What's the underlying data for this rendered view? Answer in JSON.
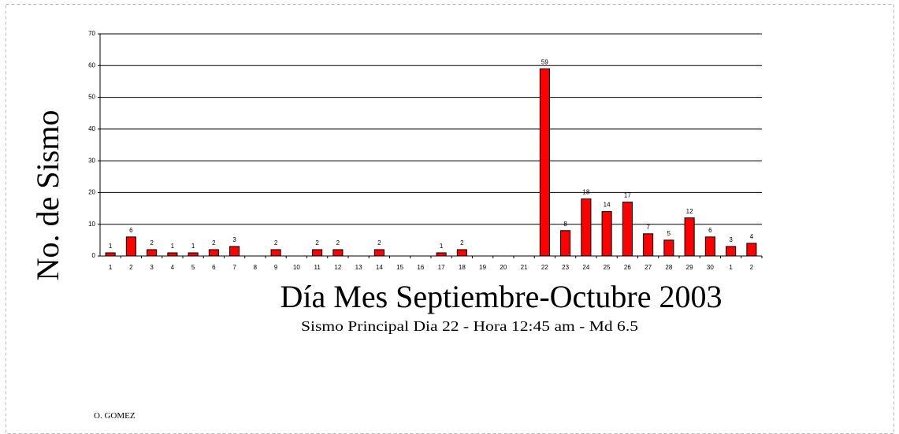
{
  "chart_data": {
    "type": "bar",
    "x_label": "Día Mes Septiembre-Octubre 2003",
    "subtitle": "Sismo Principal  Dia 22 - Hora 12:45 am - Md 6.5",
    "y_label": "No. de Sismo",
    "annotation": "O. GOMEZ",
    "categories": [
      "1",
      "2",
      "3",
      "4",
      "5",
      "6",
      "7",
      "8",
      "9",
      "10",
      "11",
      "12",
      "13",
      "14",
      "15",
      "16",
      "17",
      "18",
      "19",
      "20",
      "21",
      "22",
      "23",
      "24",
      "25",
      "26",
      "27",
      "28",
      "29",
      "30",
      "1",
      "2"
    ],
    "values": [
      1,
      6,
      2,
      1,
      1,
      2,
      3,
      null,
      2,
      null,
      2,
      2,
      null,
      2,
      null,
      null,
      1,
      2,
      null,
      null,
      null,
      59,
      8,
      18,
      14,
      17,
      7,
      5,
      12,
      6,
      3,
      4
    ],
    "color": "#ff0000",
    "ylim": [
      0,
      70
    ],
    "yticks": [
      0,
      10,
      20,
      30,
      40,
      50,
      60,
      70
    ],
    "grid": true
  }
}
